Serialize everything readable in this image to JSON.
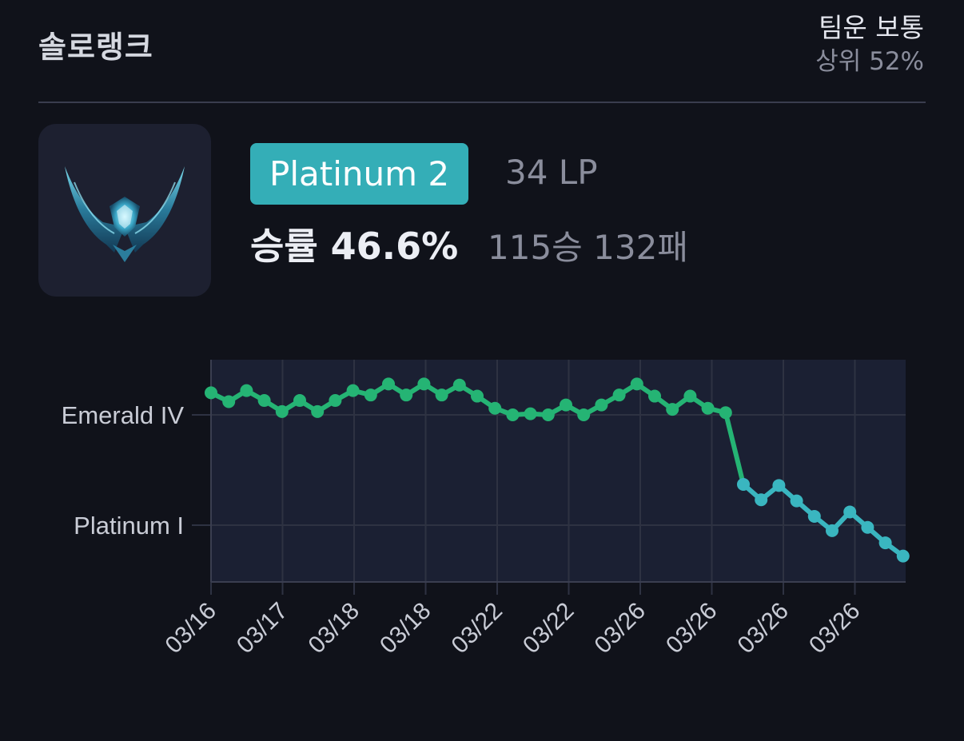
{
  "header": {
    "queue_title": "솔로랭크",
    "team_luck_label": "팀운 보통",
    "team_luck_pct": "상위 52%"
  },
  "rank": {
    "tier": "Platinum 2",
    "lp": "34 LP",
    "winrate": "승률 46.6%",
    "record": "115승 132패",
    "emblem_icon": "platinum-emblem-icon"
  },
  "colors": {
    "background": "#10121a",
    "badge": "#34aeb7",
    "emerald_line": "#25b474",
    "platinum_line": "#3ab6c0",
    "plot_fill": "#1b2033"
  },
  "chart_data": {
    "type": "line",
    "title": "",
    "xlabel": "",
    "ylabel": "",
    "y_tick_labels": [
      "Emerald IV",
      "Platinum I"
    ],
    "x_tick_labels": [
      "03/16",
      "03/17",
      "03/18",
      "03/18",
      "03/22",
      "03/22",
      "03/26",
      "03/26",
      "03/26",
      "03/26"
    ],
    "grid": true,
    "y_unit_note_only": "y values: ladder points relative to Emerald IV 0 LP (0 = Emerald IV, -100 = Platinum I)",
    "series": [
      {
        "tier": "Emerald",
        "values": [
          20,
          12,
          22,
          13,
          3,
          13,
          3,
          13,
          22,
          18,
          28,
          18,
          28,
          18,
          27,
          17,
          6,
          0,
          1,
          0,
          9,
          0,
          9,
          18,
          28,
          17,
          5,
          17,
          6,
          2
        ]
      },
      {
        "tier": "Platinum",
        "values": [
          -63,
          -77,
          -64,
          -78,
          -92,
          -105,
          -88,
          -102,
          -116,
          -128
        ]
      }
    ]
  }
}
